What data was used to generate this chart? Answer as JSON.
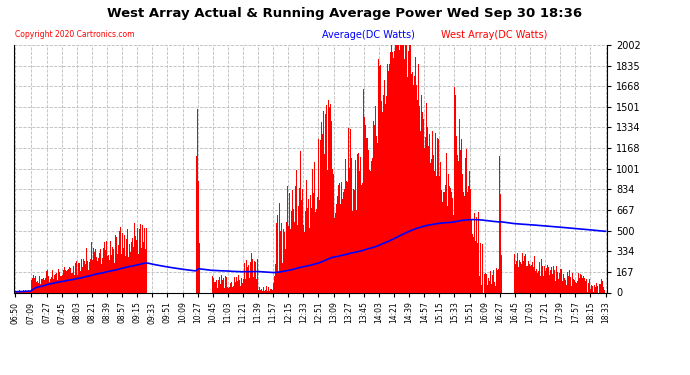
{
  "title": "West Array Actual & Running Average Power Wed Sep 30 18:36",
  "copyright": "Copyright 2020 Cartronics.com",
  "legend_avg": "Average(DC Watts)",
  "legend_west": "West Array(DC Watts)",
  "ylabel_right_values": [
    0.0,
    166.8,
    333.6,
    500.4,
    667.2,
    834.0,
    1000.8,
    1167.6,
    1334.4,
    1501.1,
    1667.9,
    1834.7,
    2001.5
  ],
  "ymax": 2001.5,
  "ymin": 0.0,
  "background_color": "#ffffff",
  "plot_bg_color": "#ffffff",
  "grid_color": "#bbbbbb",
  "bar_color": "#ff0000",
  "avg_line_color": "#0000ff",
  "title_color": "#000000",
  "copyright_color": "#ff0000",
  "avg_legend_color": "#0000ff",
  "west_legend_color": "#ff0000",
  "time_labels": [
    "06:50",
    "07:09",
    "07:27",
    "07:45",
    "08:03",
    "08:21",
    "08:39",
    "08:57",
    "09:15",
    "09:33",
    "09:51",
    "10:09",
    "10:27",
    "10:45",
    "11:03",
    "11:21",
    "11:39",
    "11:57",
    "12:15",
    "12:33",
    "12:51",
    "13:09",
    "13:27",
    "13:45",
    "14:03",
    "14:21",
    "14:39",
    "14:57",
    "15:15",
    "15:33",
    "15:51",
    "16:09",
    "16:27",
    "16:45",
    "17:03",
    "17:21",
    "17:39",
    "17:57",
    "18:15",
    "18:33"
  ]
}
